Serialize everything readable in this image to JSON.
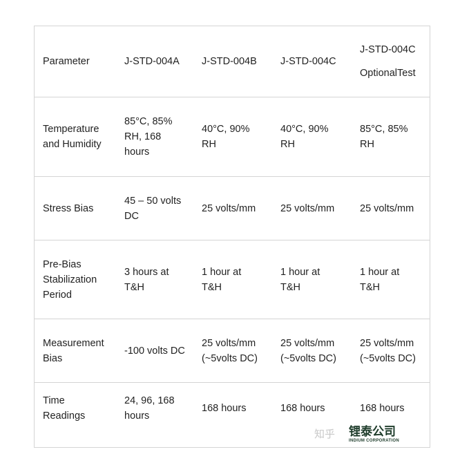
{
  "table": {
    "headers": [
      "Parameter",
      "J-STD-004A",
      "J-STD-004B",
      "J-STD-004C",
      [
        "J-STD-004C",
        "OptionalTest"
      ]
    ],
    "rows": [
      [
        "Temperature\nand Humidity",
        "85°C, 85%\nRH, 168\nhours",
        "40°C, 90%\nRH",
        "40°C, 90%\nRH",
        "85°C, 85%\nRH"
      ],
      [
        "Stress Bias",
        "45 – 50 volts\nDC",
        "25 volts/mm",
        "25 volts/mm",
        "25 volts/mm"
      ],
      [
        "Pre-Bias\nStabilization\nPeriod",
        "3 hours at\nT&H",
        "1 hour at\nT&H",
        "1 hour at\nT&H",
        "1 hour at\nT&H"
      ],
      [
        "Measurement\nBias",
        "-100 volts DC",
        "25 volts/mm\n(~5volts DC)",
        "25 volts/mm\n(~5volts DC)",
        "25 volts/mm\n(~5volts DC)"
      ],
      [
        "Time\nReadings",
        "24, 96, 168\nhours",
        "168 hours",
        "168 hours",
        "168 hours"
      ]
    ]
  },
  "watermark": {
    "logo": "锂泰公司",
    "logo_sub": "INDIUM CORPORATION",
    "site": "知乎"
  }
}
